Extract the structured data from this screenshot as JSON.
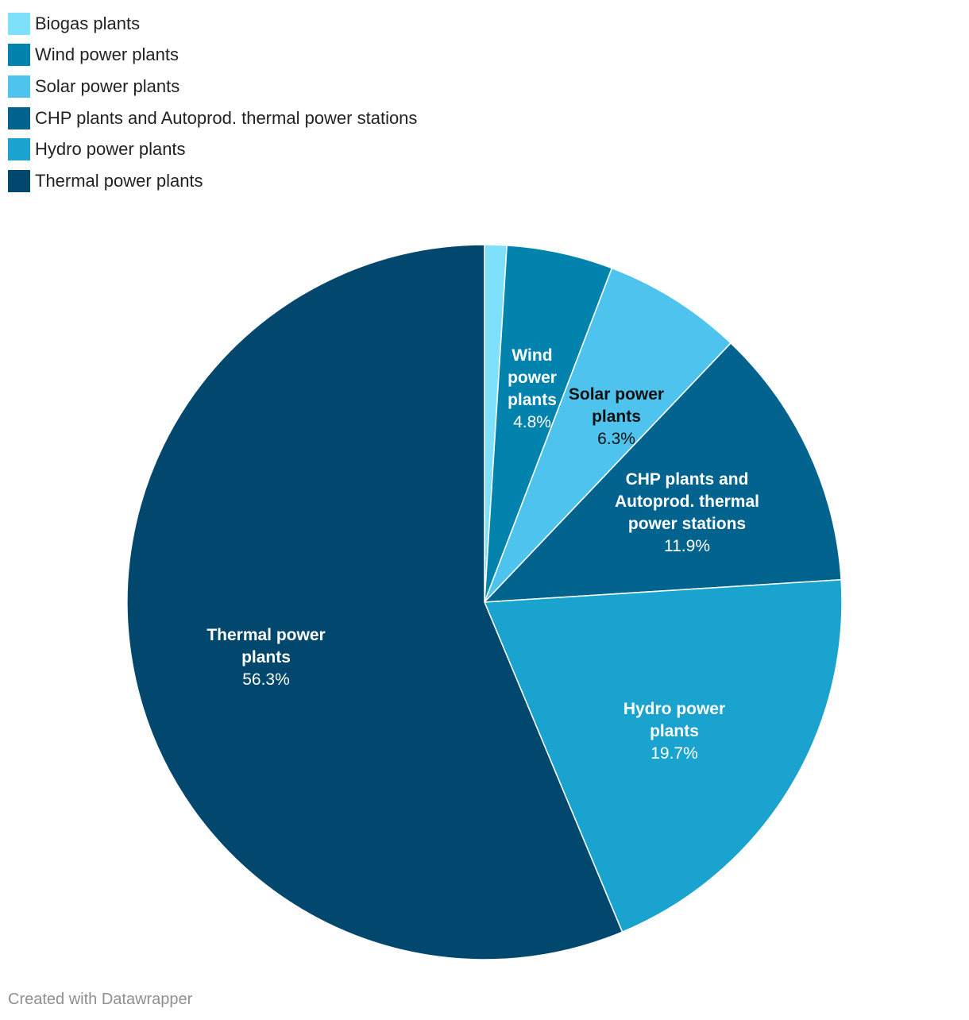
{
  "chart_data": {
    "type": "pie",
    "categories": [
      "Biogas plants",
      "Wind power plants",
      "Solar power plants",
      "CHP plants and Autoprod. thermal power stations",
      "Hydro power plants",
      "Thermal power plants"
    ],
    "values": [
      1.0,
      4.8,
      6.3,
      11.9,
      19.7,
      56.3
    ],
    "colors": [
      "#7fe0fb",
      "#0283ad",
      "#4ec3ed",
      "#02648e",
      "#1aa3cf",
      "#02476d"
    ],
    "slices": [
      {
        "name": "Biogas plants",
        "value": 1.0,
        "color": "#7fe0fb",
        "label_lines": [],
        "value_label": "",
        "label_color": "#ffffff"
      },
      {
        "name": "Wind power plants",
        "value": 4.8,
        "color": "#0283ad",
        "label_lines": [
          "Wind",
          "power",
          "plants"
        ],
        "value_label": "4.8%",
        "label_color": "#ffffff"
      },
      {
        "name": "Solar power plants",
        "value": 6.3,
        "color": "#4ec3ed",
        "label_lines": [
          "Solar power",
          "plants"
        ],
        "value_label": "6.3%",
        "label_color": "#111111"
      },
      {
        "name": "CHP plants and Autoprod. thermal power stations",
        "value": 11.9,
        "color": "#02648e",
        "label_lines": [
          "CHP plants and",
          "Autoprod. thermal",
          "power stations"
        ],
        "value_label": "11.9%",
        "label_color": "#ffffff"
      },
      {
        "name": "Hydro power plants",
        "value": 19.7,
        "color": "#1aa3cf",
        "label_lines": [
          "Hydro power",
          "plants"
        ],
        "value_label": "19.7%",
        "label_color": "#ffffff"
      },
      {
        "name": "Thermal power plants",
        "value": 56.3,
        "color": "#02476d",
        "label_lines": [
          "Thermal power",
          "plants"
        ],
        "value_label": "56.3%",
        "label_color": "#ffffff"
      }
    ],
    "legend": {
      "placement": "top-left",
      "entries": [
        "Biogas plants",
        "Wind power plants",
        "Solar power plants",
        "CHP plants and Autoprod. thermal power stations",
        "Hydro power plants",
        "Thermal power plants"
      ]
    }
  },
  "credit": "Created with Datawrapper"
}
